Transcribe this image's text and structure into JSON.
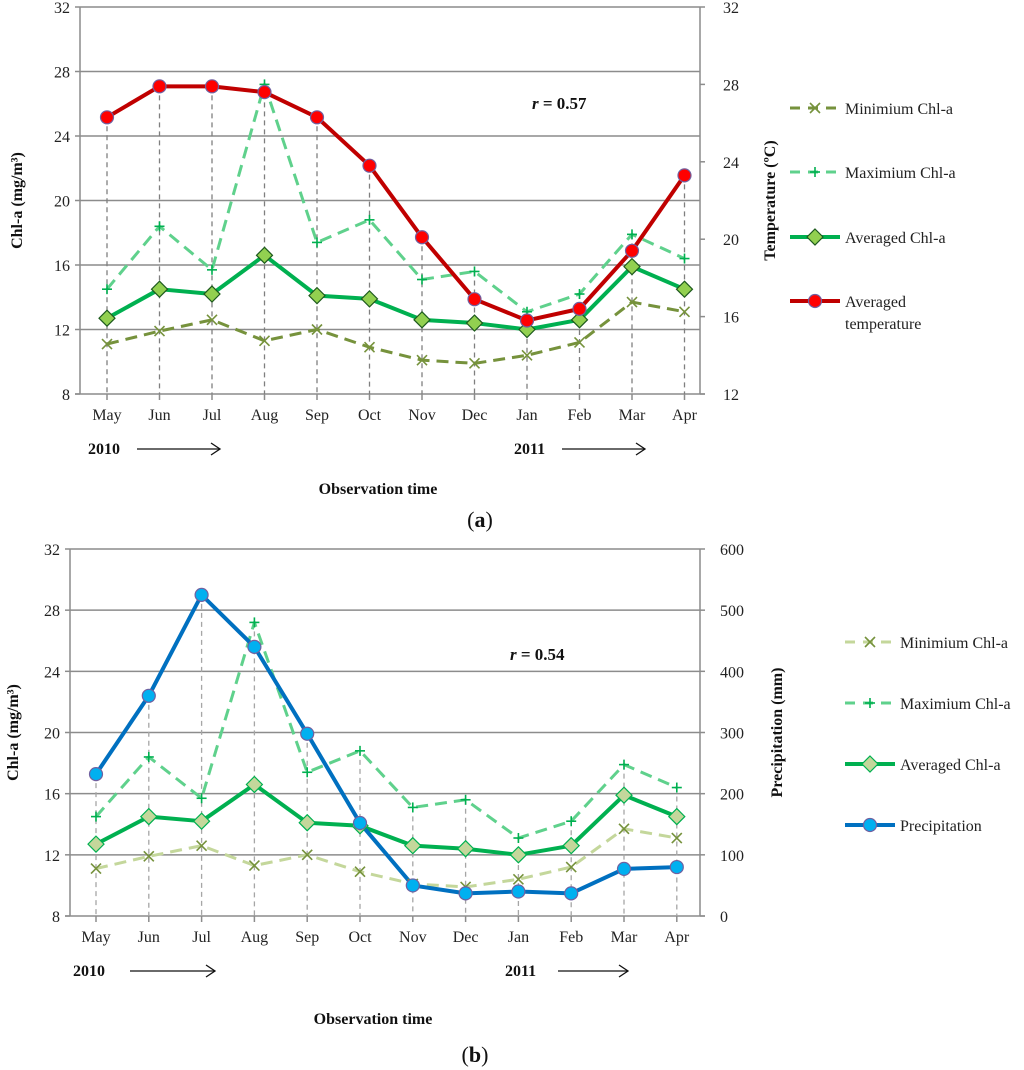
{
  "chart_data": [
    {
      "id": "a",
      "type": "line",
      "panel_label": "a",
      "categories": [
        "May",
        "Jun",
        "Jul",
        "Aug",
        "Sep",
        "Oct",
        "Nov",
        "Dec",
        "Jan",
        "Feb",
        "Mar",
        "Apr"
      ],
      "years": [
        {
          "label": "2010",
          "start": "May",
          "end": "Jul"
        },
        {
          "label": "2011",
          "start": "Jan",
          "end": "Mar"
        }
      ],
      "xlabel": "Observation time",
      "ylabel": "Chl-a (mg/m³)",
      "y2label": "Temperature (ºC)",
      "ylim": [
        8,
        32
      ],
      "yticks": [
        8,
        12,
        16,
        20,
        24,
        28,
        32
      ],
      "y2lim": [
        12,
        32
      ],
      "y2ticks": [
        12,
        16,
        20,
        24,
        28,
        32
      ],
      "grid": true,
      "annotation": {
        "var": "r",
        "text": " = 0.57"
      },
      "legend_position": "right",
      "series": [
        {
          "name": "Minimium Chl-a",
          "axis": "left",
          "style": "dashed",
          "marker": "x",
          "color": "#76923c",
          "values": [
            11.1,
            11.9,
            12.6,
            11.3,
            12.0,
            10.9,
            10.1,
            9.9,
            10.4,
            11.2,
            13.7,
            13.1
          ]
        },
        {
          "name": "Maximium Chl-a",
          "axis": "left",
          "style": "dashed",
          "marker": "plus",
          "color": "#5fd18c",
          "values": [
            14.5,
            18.4,
            15.7,
            27.2,
            17.4,
            18.8,
            15.1,
            15.6,
            13.1,
            14.2,
            17.9,
            16.4
          ]
        },
        {
          "name": "Averaged Chl-a",
          "axis": "left",
          "style": "solid",
          "marker": "diamond",
          "color": "#00b050",
          "marker_fill": "#92d050",
          "values": [
            12.7,
            14.5,
            14.2,
            16.6,
            14.1,
            13.9,
            12.6,
            12.4,
            12.0,
            12.6,
            15.9,
            14.5
          ]
        },
        {
          "name": "Averaged temperature",
          "axis": "right",
          "style": "solid",
          "marker": "circle",
          "color": "#c00000",
          "marker_fill": "#ff0000",
          "values": [
            26.3,
            27.9,
            27.9,
            27.6,
            26.3,
            23.8,
            20.1,
            16.9,
            15.8,
            16.4,
            19.4,
            23.3
          ]
        }
      ]
    },
    {
      "id": "b",
      "type": "line",
      "panel_label": "b",
      "categories": [
        "May",
        "Jun",
        "Jul",
        "Aug",
        "Sep",
        "Oct",
        "Nov",
        "Dec",
        "Jan",
        "Feb",
        "Mar",
        "Apr"
      ],
      "years": [
        {
          "label": "2010",
          "start": "May",
          "end": "Jul"
        },
        {
          "label": "2011",
          "start": "Jan",
          "end": "Mar"
        }
      ],
      "xlabel": "Observation time",
      "ylabel": "Chl-a (mg/m³)",
      "y2label": "Precipitation (mm)",
      "ylim": [
        8,
        32
      ],
      "yticks": [
        8,
        12,
        16,
        20,
        24,
        28,
        32
      ],
      "y2lim": [
        0,
        600
      ],
      "y2ticks": [
        0,
        100,
        200,
        300,
        400,
        500,
        600
      ],
      "grid": true,
      "annotation": {
        "var": "r",
        "text": " = 0.54"
      },
      "legend_position": "right",
      "series": [
        {
          "name": "Minimium Chl-a",
          "axis": "left",
          "style": "dashed",
          "marker": "x",
          "color": "#c4d79b",
          "marker_color": "#76923c",
          "values": [
            11.1,
            11.9,
            12.6,
            11.3,
            12.0,
            10.9,
            10.1,
            9.9,
            10.4,
            11.2,
            13.7,
            13.1
          ]
        },
        {
          "name": "Maximium Chl-a",
          "axis": "left",
          "style": "dashed",
          "marker": "plus",
          "color": "#5fd18c",
          "values": [
            14.5,
            18.4,
            15.7,
            27.2,
            17.4,
            18.8,
            15.1,
            15.6,
            13.1,
            14.2,
            17.9,
            16.4
          ]
        },
        {
          "name": "Averaged Chl-a",
          "axis": "left",
          "style": "solid",
          "marker": "diamond",
          "color": "#00b050",
          "marker_fill": "#c4d79b",
          "values": [
            12.7,
            14.5,
            14.2,
            16.6,
            14.1,
            13.9,
            12.6,
            12.4,
            12.0,
            12.6,
            15.9,
            14.5
          ]
        },
        {
          "name": "Precipitation",
          "axis": "right",
          "style": "solid",
          "marker": "circle",
          "color": "#0070c0",
          "marker_fill": "#00b0f0",
          "values": [
            232,
            360,
            525,
            440,
            298,
            152,
            50,
            37,
            40,
            37,
            77,
            80
          ]
        }
      ]
    }
  ]
}
